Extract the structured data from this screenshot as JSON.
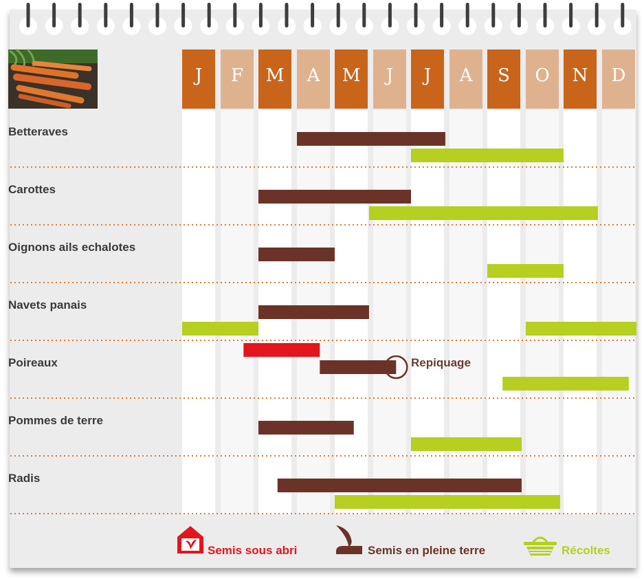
{
  "chart_data": {
    "type": "gantt",
    "months": [
      "J",
      "F",
      "M",
      "A",
      "M",
      "J",
      "J",
      "A",
      "S",
      "O",
      "N",
      "D"
    ],
    "month_header_colors": [
      "#c8651b",
      "#dfb28f",
      "#c8651b",
      "#dfb28f",
      "#c8651b",
      "#dfb28f",
      "#c8651b",
      "#dfb28f",
      "#c8651b",
      "#dfb28f",
      "#c8651b",
      "#dfb28f"
    ],
    "crops": [
      {
        "name": "Betteraves",
        "bars": [
          {
            "kind": "pleine_terre",
            "start": 4.0,
            "end": 7.9
          },
          {
            "kind": "recolte",
            "start": 7.0,
            "end": 11.0
          }
        ]
      },
      {
        "name": "Carottes",
        "bars": [
          {
            "kind": "pleine_terre",
            "start": 3.0,
            "end": 7.0
          },
          {
            "kind": "recolte",
            "start": 5.9,
            "end": 11.9
          }
        ]
      },
      {
        "name": "Oignons ails echalotes",
        "bars": [
          {
            "kind": "pleine_terre",
            "start": 3.0,
            "end": 5.0
          },
          {
            "kind": "recolte",
            "start": 9.0,
            "end": 11.0
          }
        ]
      },
      {
        "name": "Navets panais",
        "bars": [
          {
            "kind": "pleine_terre",
            "start": 3.0,
            "end": 5.9
          },
          {
            "kind": "recolte",
            "start": 1.0,
            "end": 3.0
          },
          {
            "kind": "recolte",
            "start": 10.0,
            "end": 12.9
          }
        ]
      },
      {
        "name": "Poireaux",
        "bars": [
          {
            "kind": "abri",
            "start": 2.6,
            "end": 4.6
          },
          {
            "kind": "pleine_terre",
            "start": 4.6,
            "end": 6.6
          },
          {
            "kind": "recolte",
            "start": 9.4,
            "end": 12.7
          }
        ]
      },
      {
        "name": "Pommes de terre",
        "bars": [
          {
            "kind": "pleine_terre",
            "start": 3.0,
            "end": 5.5
          },
          {
            "kind": "recolte",
            "start": 7.0,
            "end": 9.9
          }
        ]
      },
      {
        "name": "Radis",
        "bars": [
          {
            "kind": "pleine_terre",
            "start": 3.5,
            "end": 9.9
          },
          {
            "kind": "recolte",
            "start": 5.0,
            "end": 10.9
          }
        ]
      }
    ],
    "annotation": {
      "text": "Repiquage",
      "crop": "Poireaux",
      "month": 6.6
    },
    "legend": [
      {
        "kind": "abri",
        "label": "Semis sous abri",
        "color": "#e3161d",
        "icon": "house-seedling-icon"
      },
      {
        "kind": "pleine_terre",
        "label": "Semis en pleine terre",
        "color": "#6b3328",
        "icon": "soil-seedling-icon"
      },
      {
        "kind": "recolte",
        "label": "Récoltes",
        "color": "#b6cf20",
        "icon": "basket-icon"
      }
    ]
  }
}
